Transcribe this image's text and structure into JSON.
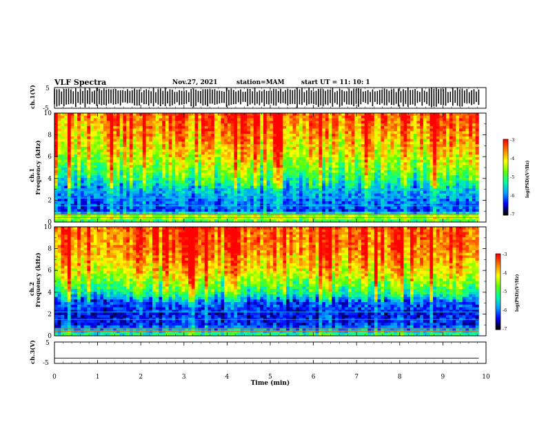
{
  "header": {
    "title": "VLF Spectra",
    "date": "Nov.27, 2021",
    "station": "station=MAM",
    "start": "start UT =  11: 10: 1"
  },
  "chart_data": {
    "type": "heatmap",
    "xlabel": "Time (min)",
    "xlim": [
      0,
      10
    ],
    "x_ticks": [
      "0",
      "1",
      "2",
      "3",
      "4",
      "5",
      "6",
      "7",
      "8",
      "9",
      "10"
    ],
    "data_end_min": 9.83,
    "panels": [
      {
        "name": "ch.1(V)",
        "type": "line",
        "ylabel": "ch.1(V)",
        "ylim": [
          -5,
          5
        ],
        "y_ticks": [
          "5",
          "-5"
        ],
        "description_values": {
          "mean": 0,
          "amplitude": 5
        }
      },
      {
        "name": "ch.1",
        "type": "heatmap",
        "ylabel_line1": "ch.1",
        "ylabel_line2": "Frequency (kHz)",
        "ylim": [
          0,
          10
        ],
        "y_ticks": [
          "0",
          "2",
          "4",
          "6",
          "8",
          "10"
        ],
        "frequency_profile_kHz": [
          {
            "f": 0.0,
            "level": -5.2
          },
          {
            "f": 0.5,
            "level": -4.2
          },
          {
            "f": 1.0,
            "level": -6.2
          },
          {
            "f": 2.0,
            "level": -6.0
          },
          {
            "f": 3.0,
            "level": -5.7
          },
          {
            "f": 4.0,
            "level": -5.1
          },
          {
            "f": 5.0,
            "level": -4.7
          },
          {
            "f": 6.0,
            "level": -4.3
          },
          {
            "f": 8.0,
            "level": -3.8
          },
          {
            "f": 10.0,
            "level": -3.4
          }
        ],
        "colorbar": {
          "label": "log(PSD)(V²/Hz)",
          "range": [
            -7,
            -3
          ],
          "ticks": [
            "-3",
            "-4",
            "-5",
            "-6",
            "-7"
          ]
        }
      },
      {
        "name": "ch.2",
        "type": "heatmap",
        "ylabel_line1": "ch.2",
        "ylabel_line2": "Frequency (kHz)",
        "ylim": [
          0,
          10
        ],
        "y_ticks": [
          "0",
          "2",
          "4",
          "6",
          "8",
          "10"
        ],
        "frequency_profile_kHz": [
          {
            "f": 0.0,
            "level": -5.0
          },
          {
            "f": 1.0,
            "level": -6.3
          },
          {
            "f": 2.0,
            "level": -6.4
          },
          {
            "f": 3.0,
            "level": -6.1
          },
          {
            "f": 4.0,
            "level": -5.1
          },
          {
            "f": 5.0,
            "level": -4.5
          },
          {
            "f": 6.0,
            "level": -4.0
          },
          {
            "f": 8.0,
            "level": -3.5
          },
          {
            "f": 10.0,
            "level": -3.3
          }
        ],
        "colorbar": {
          "label": "log(PSD)(V²/Hz)",
          "range": [
            -7,
            -3
          ],
          "ticks": [
            "-3",
            "-4",
            "-5",
            "-6",
            "-7"
          ]
        }
      },
      {
        "name": "ch.3(V)",
        "type": "line",
        "ylabel": "ch.3(V)",
        "ylim": [
          -5,
          5
        ],
        "y_ticks": [
          "5",
          "-5"
        ],
        "description_values": {
          "constant": -2.5
        }
      }
    ]
  },
  "colors": {
    "colormap": [
      "#000000",
      "#0000ff",
      "#00a0ff",
      "#00ffa0",
      "#60ff00",
      "#ffff00",
      "#ff8000",
      "#ff0000",
      "#ffffff"
    ]
  }
}
